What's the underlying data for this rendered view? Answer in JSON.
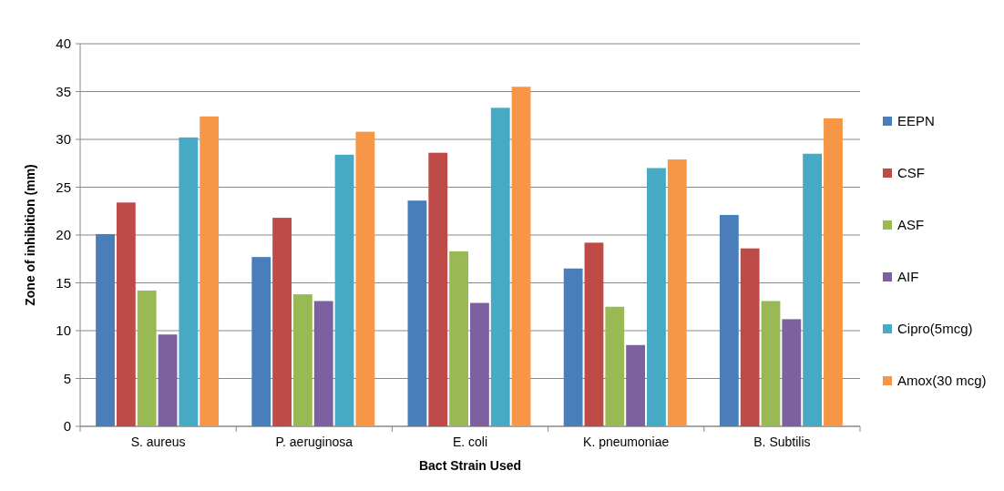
{
  "chart_data": {
    "type": "bar",
    "xlabel": "Bact Strain Used",
    "ylabel": "Zone of inhibition (mm)",
    "categories": [
      "S. aureus",
      "P. aeruginosa",
      "E. coli",
      "K. pneumoniae",
      "B. Subtilis"
    ],
    "series": [
      {
        "name": "EEPN",
        "color": "#4a7ebb",
        "values": [
          20.1,
          17.7,
          23.6,
          16.5,
          22.1
        ]
      },
      {
        "name": "CSF",
        "color": "#be4b48",
        "values": [
          23.4,
          21.8,
          28.6,
          19.2,
          18.6
        ]
      },
      {
        "name": "ASF",
        "color": "#98b954",
        "values": [
          14.2,
          13.8,
          18.3,
          12.5,
          13.1
        ]
      },
      {
        "name": "AIF",
        "color": "#7d60a0",
        "values": [
          9.6,
          13.1,
          12.9,
          8.5,
          11.2
        ]
      },
      {
        "name": "Cipro(5mcg)",
        "color": "#46aac5",
        "values": [
          30.2,
          28.4,
          33.3,
          27.0,
          28.5
        ]
      },
      {
        "name": "Amox(30 mcg)",
        "color": "#f79646",
        "values": [
          32.4,
          30.8,
          35.5,
          27.9,
          32.2
        ]
      }
    ],
    "ylim": [
      0,
      40
    ],
    "yticks": [
      0,
      5,
      10,
      15,
      20,
      25,
      30,
      35,
      40
    ],
    "grid": "y",
    "legend": "right"
  }
}
